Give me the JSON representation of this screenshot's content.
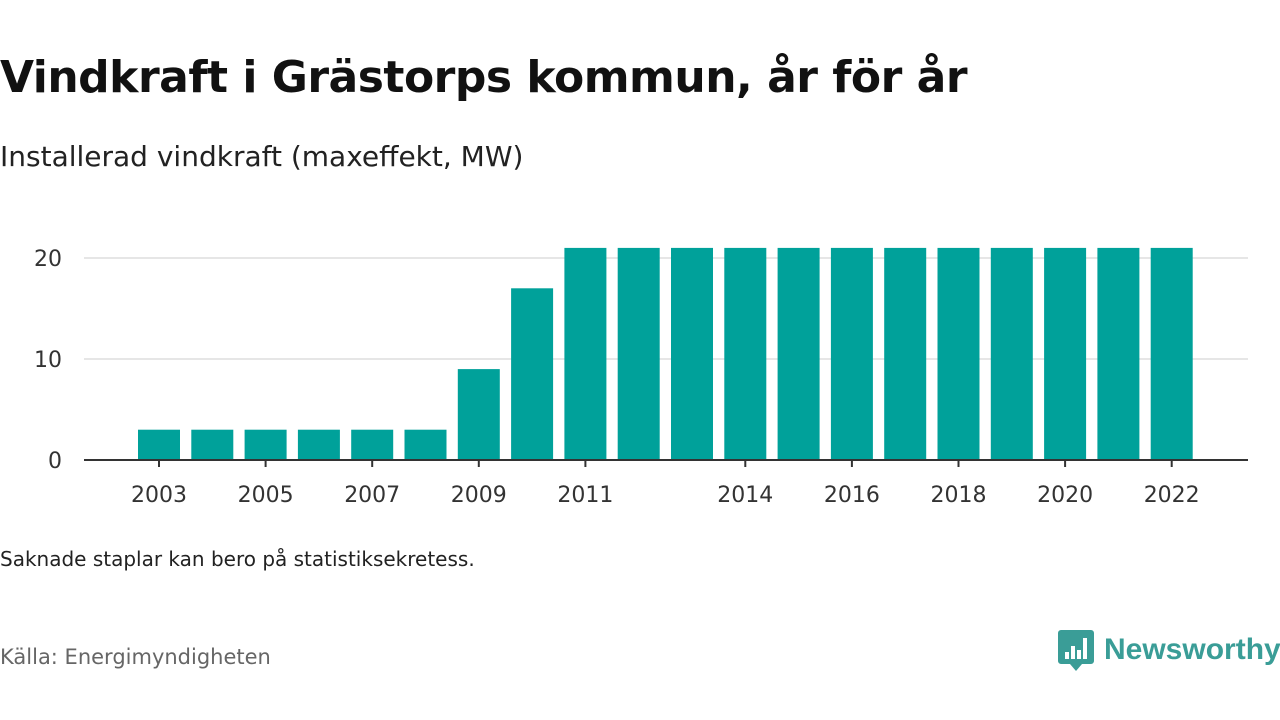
{
  "title": "Vindkraft i Grästorps kommun, år för år",
  "subtitle": "Installerad vindkraft (maxeffekt, MW)",
  "note": "Saknade staplar kan bero på statistiksekretess.",
  "source": "Källa: Energimyndigheten",
  "brand": {
    "name": "Newsworthy",
    "color": "#3a9d97",
    "icon": "bar-chart-badge-icon"
  },
  "colors": {
    "bar": "#00a19a",
    "grid": "#dddddd",
    "axis": "#333333"
  },
  "chart_data": {
    "type": "bar",
    "title": "Vindkraft i Grästorps kommun, år för år",
    "subtitle": "Installerad vindkraft (maxeffekt, MW)",
    "xlabel": "",
    "ylabel": "",
    "categories": [
      "2003",
      "2004",
      "2005",
      "2006",
      "2007",
      "2008",
      "2009",
      "2010",
      "2011",
      "2012",
      "2013",
      "2014",
      "2015",
      "2016",
      "2017",
      "2018",
      "2019",
      "2020",
      "2021",
      "2022"
    ],
    "values": [
      3,
      3,
      3,
      3,
      3,
      3,
      9,
      17,
      21,
      21,
      21,
      21,
      21,
      21,
      21,
      21,
      21,
      21,
      21,
      21
    ],
    "x_tick_labels": [
      "2003",
      "2005",
      "2007",
      "2009",
      "2011",
      "2014",
      "2016",
      "2018",
      "2020",
      "2022"
    ],
    "y_ticks": [
      0,
      10,
      20
    ],
    "ylim": [
      0,
      21
    ],
    "grid": true,
    "legend": "none"
  }
}
